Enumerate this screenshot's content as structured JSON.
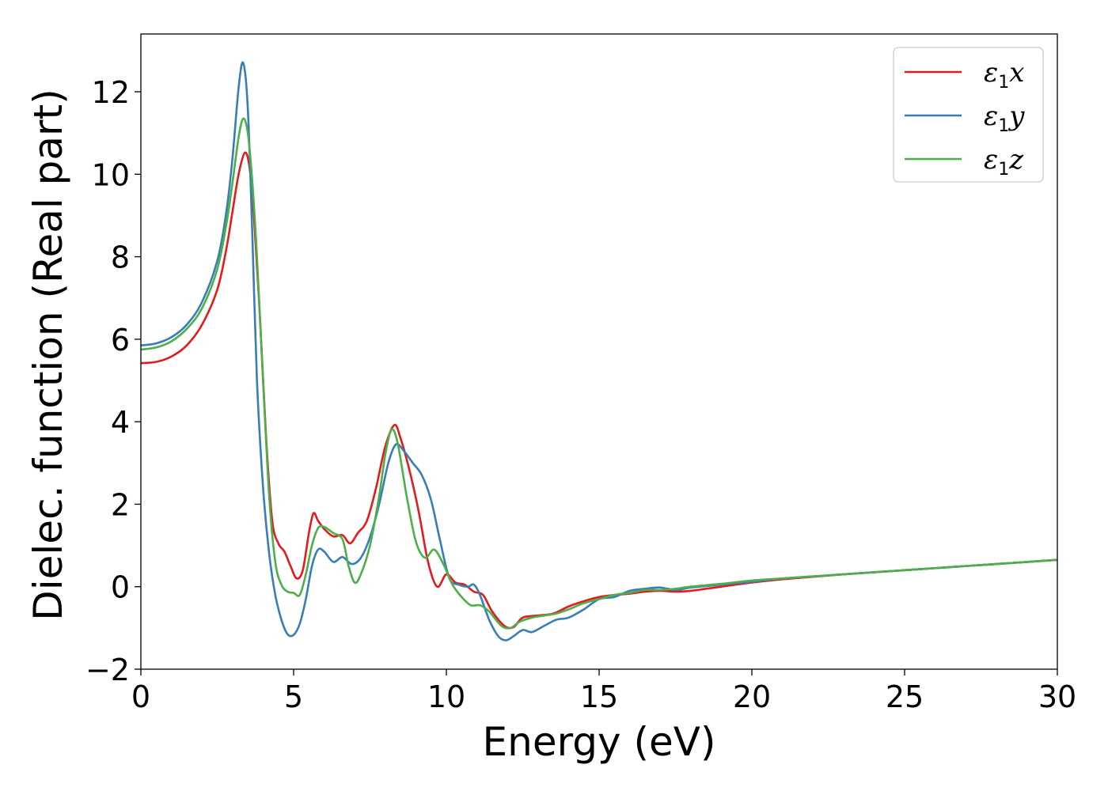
{
  "chart_data": {
    "type": "line",
    "title": "",
    "xlabel": "Energy (eV)",
    "ylabel": "Dielec. function (Real part)",
    "xlim": [
      0,
      30
    ],
    "ylim": [
      -2,
      13.4
    ],
    "xticks": [
      0,
      5,
      10,
      15,
      20,
      25,
      30
    ],
    "xtick_labels": [
      "0",
      "5",
      "10",
      "15",
      "20",
      "25",
      "30"
    ],
    "yticks": [
      -2,
      0,
      2,
      4,
      6,
      8,
      10,
      12
    ],
    "ytick_labels": [
      "−2",
      "0",
      "2",
      "4",
      "6",
      "8",
      "10",
      "12"
    ],
    "grid": false,
    "legend_position": "top-right",
    "series": [
      {
        "name": "ε₁x",
        "legend": {
          "base": "ε",
          "sub": "1",
          "tail": "x"
        },
        "color": "#e41a1c",
        "points": [
          [
            0,
            5.42
          ],
          [
            0.5,
            5.45
          ],
          [
            1.0,
            5.58
          ],
          [
            1.5,
            5.85
          ],
          [
            2.0,
            6.35
          ],
          [
            2.5,
            7.2
          ],
          [
            2.8,
            8.2
          ],
          [
            3.0,
            9.1
          ],
          [
            3.2,
            10.0
          ],
          [
            3.4,
            10.52
          ],
          [
            3.55,
            10.2
          ],
          [
            3.7,
            9.0
          ],
          [
            3.9,
            6.5
          ],
          [
            4.1,
            3.6
          ],
          [
            4.3,
            1.6
          ],
          [
            4.5,
            1.05
          ],
          [
            4.7,
            0.85
          ],
          [
            4.9,
            0.5
          ],
          [
            5.1,
            0.2
          ],
          [
            5.3,
            0.4
          ],
          [
            5.5,
            1.3
          ],
          [
            5.65,
            1.78
          ],
          [
            5.8,
            1.6
          ],
          [
            6.0,
            1.4
          ],
          [
            6.3,
            1.22
          ],
          [
            6.6,
            1.25
          ],
          [
            6.85,
            1.05
          ],
          [
            7.1,
            1.3
          ],
          [
            7.4,
            1.6
          ],
          [
            7.7,
            2.4
          ],
          [
            8.0,
            3.4
          ],
          [
            8.3,
            3.92
          ],
          [
            8.5,
            3.6
          ],
          [
            8.8,
            2.8
          ],
          [
            9.1,
            1.8
          ],
          [
            9.4,
            0.6
          ],
          [
            9.7,
            0.0
          ],
          [
            10.0,
            0.3
          ],
          [
            10.3,
            0.1
          ],
          [
            10.6,
            0.05
          ],
          [
            10.9,
            -0.12
          ],
          [
            11.2,
            -0.2
          ],
          [
            11.5,
            -0.6
          ],
          [
            11.9,
            -0.95
          ],
          [
            12.2,
            -0.98
          ],
          [
            12.5,
            -0.75
          ],
          [
            13.0,
            -0.7
          ],
          [
            13.5,
            -0.65
          ],
          [
            14.0,
            -0.48
          ],
          [
            14.5,
            -0.35
          ],
          [
            15.0,
            -0.25
          ],
          [
            15.5,
            -0.2
          ],
          [
            16.0,
            -0.17
          ],
          [
            16.5,
            -0.12
          ],
          [
            17.0,
            -0.1
          ],
          [
            17.5,
            -0.12
          ],
          [
            18.0,
            -0.1
          ],
          [
            18.5,
            -0.05
          ],
          [
            19.0,
            0.0
          ],
          [
            20.0,
            0.1
          ],
          [
            21.0,
            0.18
          ],
          [
            22.0,
            0.24
          ],
          [
            23.0,
            0.3
          ],
          [
            24.0,
            0.35
          ],
          [
            25.0,
            0.4
          ],
          [
            26.0,
            0.45
          ],
          [
            27.0,
            0.5
          ],
          [
            28.0,
            0.55
          ],
          [
            29.0,
            0.6
          ],
          [
            30.0,
            0.65
          ]
        ]
      },
      {
        "name": "ε₁y",
        "legend": {
          "base": "ε",
          "sub": "1",
          "tail": "y"
        },
        "color": "#377eb8",
        "points": [
          [
            0,
            5.85
          ],
          [
            0.5,
            5.9
          ],
          [
            1.0,
            6.05
          ],
          [
            1.5,
            6.35
          ],
          [
            2.0,
            6.9
          ],
          [
            2.5,
            7.9
          ],
          [
            2.8,
            9.1
          ],
          [
            3.0,
            10.4
          ],
          [
            3.2,
            12.1
          ],
          [
            3.35,
            12.7
          ],
          [
            3.5,
            11.6
          ],
          [
            3.65,
            8.5
          ],
          [
            3.8,
            5.0
          ],
          [
            4.0,
            2.4
          ],
          [
            4.2,
            0.8
          ],
          [
            4.4,
            -0.2
          ],
          [
            4.6,
            -0.8
          ],
          [
            4.8,
            -1.15
          ],
          [
            5.0,
            -1.17
          ],
          [
            5.2,
            -0.9
          ],
          [
            5.4,
            -0.3
          ],
          [
            5.6,
            0.5
          ],
          [
            5.8,
            0.9
          ],
          [
            6.0,
            0.85
          ],
          [
            6.3,
            0.6
          ],
          [
            6.6,
            0.72
          ],
          [
            6.9,
            0.55
          ],
          [
            7.2,
            0.7
          ],
          [
            7.5,
            1.2
          ],
          [
            7.8,
            2.0
          ],
          [
            8.1,
            3.0
          ],
          [
            8.35,
            3.45
          ],
          [
            8.6,
            3.3
          ],
          [
            8.9,
            3.0
          ],
          [
            9.2,
            2.7
          ],
          [
            9.5,
            2.1
          ],
          [
            9.8,
            1.1
          ],
          [
            10.1,
            0.2
          ],
          [
            10.4,
            0.05
          ],
          [
            10.7,
            0.0
          ],
          [
            10.9,
            0.05
          ],
          [
            11.1,
            -0.2
          ],
          [
            11.4,
            -0.8
          ],
          [
            11.7,
            -1.2
          ],
          [
            11.95,
            -1.3
          ],
          [
            12.2,
            -1.2
          ],
          [
            12.5,
            -1.05
          ],
          [
            12.8,
            -1.1
          ],
          [
            13.2,
            -0.95
          ],
          [
            13.6,
            -0.8
          ],
          [
            14.0,
            -0.75
          ],
          [
            14.5,
            -0.55
          ],
          [
            15.0,
            -0.3
          ],
          [
            15.5,
            -0.25
          ],
          [
            16.0,
            -0.1
          ],
          [
            16.5,
            -0.05
          ],
          [
            17.0,
            -0.02
          ],
          [
            17.5,
            -0.08
          ],
          [
            18.0,
            -0.02
          ],
          [
            19.0,
            0.05
          ],
          [
            20.0,
            0.12
          ],
          [
            21.0,
            0.2
          ],
          [
            22.0,
            0.25
          ],
          [
            23.0,
            0.3
          ],
          [
            24.0,
            0.35
          ],
          [
            25.0,
            0.4
          ],
          [
            26.0,
            0.45
          ],
          [
            27.0,
            0.5
          ],
          [
            28.0,
            0.55
          ],
          [
            29.0,
            0.6
          ],
          [
            30.0,
            0.65
          ]
        ]
      },
      {
        "name": "ε₁z",
        "legend": {
          "base": "ε",
          "sub": "1",
          "tail": "z"
        },
        "color": "#4daf4a",
        "points": [
          [
            0,
            5.75
          ],
          [
            0.5,
            5.8
          ],
          [
            1.0,
            5.95
          ],
          [
            1.5,
            6.25
          ],
          [
            2.0,
            6.75
          ],
          [
            2.5,
            7.7
          ],
          [
            2.8,
            8.8
          ],
          [
            3.0,
            9.8
          ],
          [
            3.2,
            10.9
          ],
          [
            3.35,
            11.35
          ],
          [
            3.5,
            11.0
          ],
          [
            3.65,
            9.8
          ],
          [
            3.8,
            8.0
          ],
          [
            4.0,
            5.0
          ],
          [
            4.2,
            2.2
          ],
          [
            4.4,
            0.6
          ],
          [
            4.6,
            0.05
          ],
          [
            4.8,
            -0.12
          ],
          [
            5.0,
            -0.15
          ],
          [
            5.2,
            -0.2
          ],
          [
            5.4,
            0.3
          ],
          [
            5.6,
            1.0
          ],
          [
            5.8,
            1.42
          ],
          [
            6.0,
            1.45
          ],
          [
            6.3,
            1.3
          ],
          [
            6.6,
            1.15
          ],
          [
            6.8,
            0.5
          ],
          [
            7.0,
            0.1
          ],
          [
            7.2,
            0.3
          ],
          [
            7.5,
            1.0
          ],
          [
            7.8,
            2.2
          ],
          [
            8.0,
            3.2
          ],
          [
            8.2,
            3.8
          ],
          [
            8.4,
            3.5
          ],
          [
            8.7,
            2.2
          ],
          [
            9.0,
            1.1
          ],
          [
            9.3,
            0.7
          ],
          [
            9.6,
            0.9
          ],
          [
            9.9,
            0.55
          ],
          [
            10.2,
            0.05
          ],
          [
            10.5,
            -0.25
          ],
          [
            10.8,
            -0.45
          ],
          [
            11.1,
            -0.45
          ],
          [
            11.4,
            -0.6
          ],
          [
            11.8,
            -0.95
          ],
          [
            12.1,
            -1.0
          ],
          [
            12.4,
            -0.85
          ],
          [
            12.8,
            -0.75
          ],
          [
            13.2,
            -0.7
          ],
          [
            13.6,
            -0.65
          ],
          [
            14.0,
            -0.55
          ],
          [
            14.5,
            -0.4
          ],
          [
            15.0,
            -0.3
          ],
          [
            15.5,
            -0.2
          ],
          [
            16.0,
            -0.15
          ],
          [
            16.5,
            -0.08
          ],
          [
            17.0,
            -0.08
          ],
          [
            17.5,
            -0.05
          ],
          [
            18.0,
            0.0
          ],
          [
            19.0,
            0.07
          ],
          [
            20.0,
            0.15
          ],
          [
            21.0,
            0.2
          ],
          [
            22.0,
            0.25
          ],
          [
            23.0,
            0.3
          ],
          [
            24.0,
            0.35
          ],
          [
            25.0,
            0.4
          ],
          [
            26.0,
            0.45
          ],
          [
            27.0,
            0.5
          ],
          [
            28.0,
            0.55
          ],
          [
            29.0,
            0.6
          ],
          [
            30.0,
            0.65
          ]
        ]
      }
    ]
  }
}
